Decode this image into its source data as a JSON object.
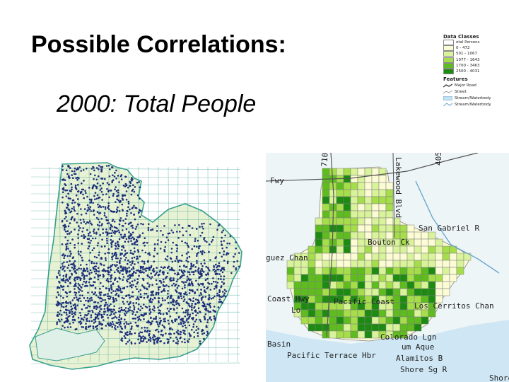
{
  "slide": {
    "title": "Possible Correlations:",
    "subtitle": "2000: Total People"
  },
  "legend": {
    "data_classes_title": "Data Classes",
    "unit_label": "otal Persons",
    "classes": [
      {
        "label": "0 - 472",
        "color": "#fbfbd4"
      },
      {
        "label": "501 - 1067",
        "color": "#d9f39a"
      },
      {
        "label": "1077 - 1643",
        "color": "#a6dd4a"
      },
      {
        "label": "1700 - 3463",
        "color": "#5fbc1e"
      },
      {
        "label": "2500 - 4031",
        "color": "#1d8a12"
      }
    ],
    "features_title": "Features",
    "features": [
      {
        "label": "Major Road",
        "icon": "major-road-icon"
      },
      {
        "label": "Street",
        "icon": "street-icon"
      },
      {
        "label": "Stream/Waterbody",
        "icon": "stream-icon"
      },
      {
        "label": "Stream/Waterbody",
        "icon": "waterbody-icon"
      }
    ]
  },
  "colors": {
    "dot": "#1c2f7a",
    "street": "#2e9c8a",
    "land": "#e9f2d2",
    "water": "#cfe7f5",
    "text": "#222222"
  },
  "map_labels": {
    "road_710": "710",
    "lakewood": "Lakewood Blvd",
    "i405": "405",
    "fwy": "Fwy",
    "san_gabriel": "San Gabriel R",
    "bouton": "Bouton Ck",
    "dominguez": "guez Chan",
    "coast_hwy": "Coast Hwy",
    "pacific_coast": "Pacific Coast",
    "los_cerritos": "Los Cerritos Chan",
    "basin": "Basin",
    "pacific_terrace": "Pacific Terrace Hbr",
    "alamitos_bay": "Alamitos B",
    "colorado_lagoon": "Colorado Lgn",
    "marine_stadium": "um Aque",
    "shore": "Shore Sg R",
    "shore_right": "Shore",
    "lo": "Lo"
  }
}
